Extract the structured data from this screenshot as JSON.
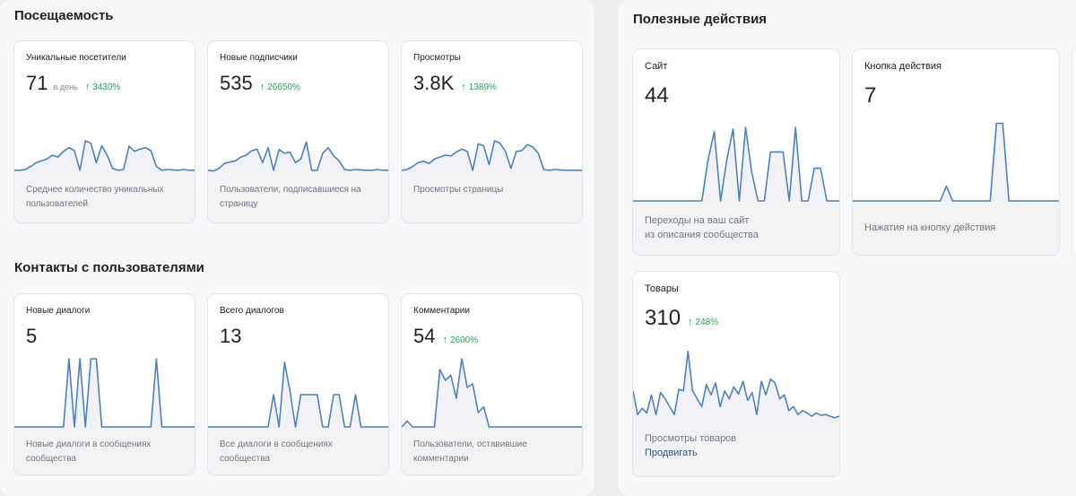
{
  "attendance": {
    "title": "Посещаемость",
    "cards": [
      {
        "title": "Уникальные посетители",
        "value": "71",
        "unit": "в день",
        "trend": "3430%",
        "desc": "Среднее количество уникальных\nпользователей",
        "series": [
          0.1,
          0.1,
          0.12,
          0.2,
          0.3,
          0.35,
          0.4,
          0.5,
          0.45,
          0.6,
          0.7,
          0.62,
          0.1,
          0.88,
          0.82,
          0.3,
          0.75,
          0.5,
          0.15,
          0.1,
          0.12,
          0.74,
          0.6,
          0.66,
          0.7,
          0.62,
          0.2,
          0.1,
          0.12,
          0.11,
          0.1,
          0.12,
          0.1,
          0.1
        ]
      },
      {
        "title": "Новые подписчики",
        "value": "535",
        "trend": "26650%",
        "desc": "Пользователи, подписавшиеся на\nстраницу",
        "series": [
          0.1,
          0.08,
          0.15,
          0.28,
          0.32,
          0.35,
          0.45,
          0.5,
          0.62,
          0.66,
          0.3,
          0.7,
          0.1,
          0.65,
          0.55,
          0.58,
          0.3,
          0.4,
          0.85,
          0.1,
          0.1,
          0.55,
          0.7,
          0.48,
          0.35,
          0.12,
          0.1,
          0.12,
          0.11,
          0.1,
          0.1,
          0.12,
          0.1,
          0.1
        ]
      },
      {
        "title": "Просмотры",
        "value": "3.8K",
        "trend": "1389%",
        "desc": "Просмотры страницы",
        "series": [
          0.1,
          0.12,
          0.2,
          0.3,
          0.34,
          0.28,
          0.4,
          0.45,
          0.5,
          0.48,
          0.58,
          0.66,
          0.6,
          0.1,
          0.8,
          0.75,
          0.25,
          0.88,
          0.82,
          0.6,
          0.15,
          0.6,
          0.62,
          0.78,
          0.72,
          0.55,
          0.12,
          0.1,
          0.12,
          0.11,
          0.1,
          0.1,
          0.1,
          0.1
        ]
      }
    ]
  },
  "contacts": {
    "title": "Контакты с пользователями",
    "cards": [
      {
        "title": "Новые диалоги",
        "value": "5",
        "desc": "Новые диалоги в сообщениях\nсообщества",
        "series": [
          0,
          0,
          0,
          0,
          0,
          0,
          0,
          0,
          0,
          0,
          0.95,
          0,
          0.95,
          0,
          0.95,
          0.95,
          0,
          0,
          0,
          0,
          0,
          0,
          0,
          0,
          0,
          0,
          0.95,
          0,
          0,
          0,
          0,
          0,
          0,
          0
        ]
      },
      {
        "title": "Всего диалогов",
        "value": "13",
        "desc": "Все диалоги в сообщениях\nсообщества",
        "series": [
          0,
          0,
          0,
          0,
          0,
          0,
          0,
          0,
          0,
          0,
          0,
          0,
          0.45,
          0,
          0.9,
          0.5,
          0,
          0.45,
          0.45,
          0.45,
          0.45,
          0,
          0,
          0.45,
          0.45,
          0,
          0,
          0.45,
          0,
          0,
          0,
          0,
          0,
          0
        ]
      },
      {
        "title": "Комментарии",
        "value": "54",
        "trend": "2600%",
        "desc": "Пользователи, оставившие\nкомментарии",
        "series": [
          0,
          0.08,
          0,
          0,
          0,
          0,
          0,
          0.8,
          0.65,
          0.72,
          0.4,
          0.95,
          0.55,
          0.6,
          0.2,
          0.28,
          0,
          0,
          0,
          0,
          0,
          0,
          0,
          0,
          0,
          0,
          0,
          0,
          0,
          0,
          0,
          0,
          0,
          0
        ]
      }
    ]
  },
  "actions": {
    "title": "Полезные действия",
    "cards": [
      {
        "title": "Сайт",
        "value": "44",
        "desc": "Переходы на ваш сайт\nиз описания сообщества",
        "series": [
          0,
          0,
          0,
          0,
          0,
          0,
          0,
          0,
          0,
          0,
          0,
          0,
          0.5,
          0.85,
          0,
          0.5,
          0.88,
          0,
          0.9,
          0.35,
          0,
          0,
          0.6,
          0.6,
          0.6,
          0,
          0.9,
          0,
          0,
          0.4,
          0.4,
          0,
          0,
          0
        ]
      },
      {
        "title": "Кнопка действия",
        "value": "7",
        "desc": "Нажатия на кнопку действия",
        "series": [
          0,
          0,
          0,
          0,
          0,
          0,
          0,
          0,
          0,
          0,
          0,
          0,
          0,
          0,
          0,
          0.18,
          0,
          0,
          0,
          0,
          0,
          0,
          0,
          0.95,
          0.95,
          0,
          0,
          0,
          0,
          0,
          0,
          0,
          0,
          0
        ]
      },
      {
        "title": "Товары",
        "value": "310",
        "trend": "248%",
        "desc": "Просмотры товаров",
        "link": "Продвигать",
        "series": [
          0.4,
          0.1,
          0.18,
          0.12,
          0.35,
          0.1,
          0.38,
          0.3,
          0.2,
          0.1,
          0.42,
          0.4,
          0.9,
          0.4,
          0.3,
          0.2,
          0.48,
          0.35,
          0.5,
          0.2,
          0.4,
          0.3,
          0.45,
          0.36,
          0.52,
          0.28,
          0.38,
          0.1,
          0.52,
          0.35,
          0.55,
          0.5,
          0.3,
          0.35,
          0.15,
          0.2,
          0.1,
          0.15,
          0.12,
          0.08,
          0.12,
          0.09,
          0.1,
          0.08,
          0.06,
          0.08
        ]
      }
    ]
  },
  "colors": {
    "line": "#5181b8",
    "fill": "#f0f2f5",
    "trend": "#2aa55a"
  }
}
